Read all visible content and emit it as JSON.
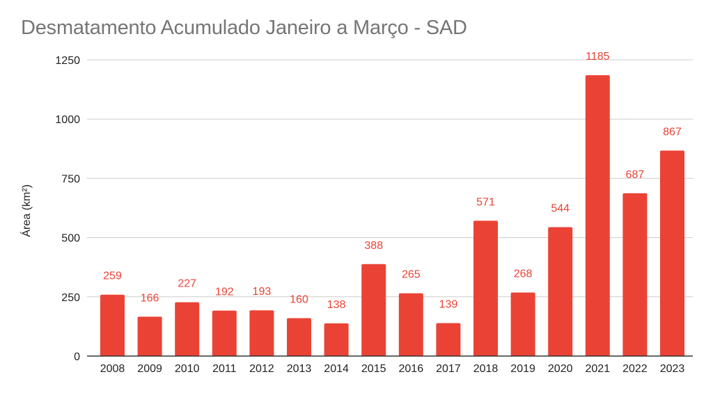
{
  "chart_data": {
    "type": "bar",
    "title": "Desmatamento Acumulado Janeiro a Março - SAD",
    "xlabel": "",
    "ylabel": "Área (km²)",
    "ylim": [
      0,
      1250
    ],
    "yticks": [
      0,
      250,
      500,
      750,
      1000,
      1250
    ],
    "grid": true,
    "legend": "none",
    "bar_color": "#ea4335",
    "categories": [
      "2008",
      "2009",
      "2010",
      "2011",
      "2012",
      "2013",
      "2014",
      "2015",
      "2016",
      "2017",
      "2018",
      "2019",
      "2020",
      "2021",
      "2022",
      "2023"
    ],
    "values": [
      259,
      166,
      227,
      192,
      193,
      160,
      138,
      388,
      265,
      139,
      571,
      268,
      544,
      1185,
      687,
      867
    ],
    "data_labels": true
  }
}
